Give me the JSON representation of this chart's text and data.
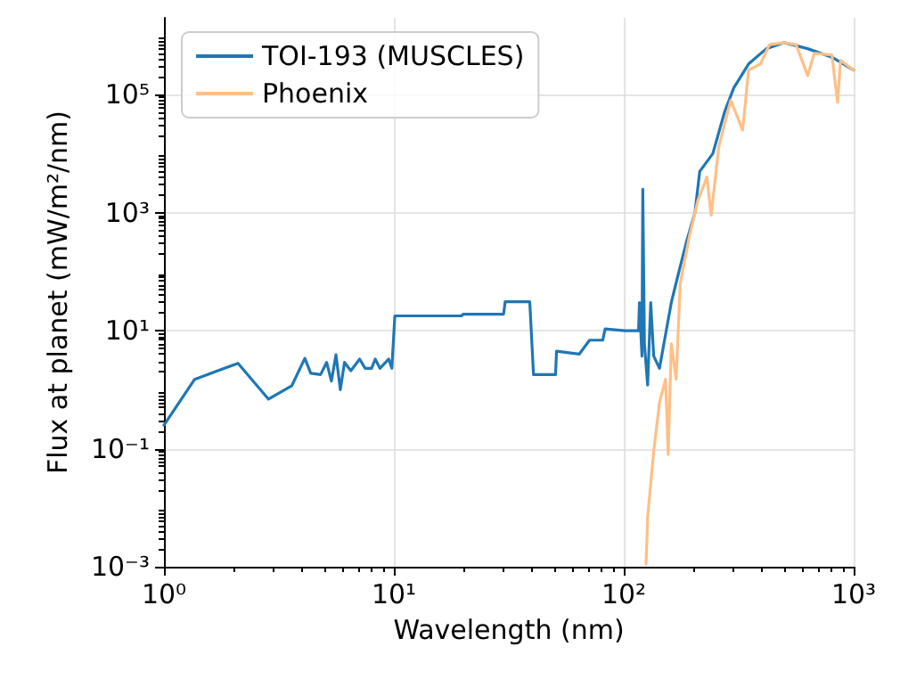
{
  "chart_data": {
    "type": "line",
    "xlabel": "Wavelength (nm)",
    "ylabel": "Flux at planet (mW/m²/nm)",
    "log": "xy",
    "grid": true,
    "legend": "top left",
    "line_style": "solid",
    "marker": "none",
    "xlim": [
      1,
      1000
    ],
    "xticks": [
      {
        "value": 1,
        "label": "10⁰"
      },
      {
        "value": 10,
        "label": "10¹"
      },
      {
        "value": 100,
        "label": "10²"
      },
      {
        "value": 1000,
        "label": "10³"
      }
    ],
    "ylim": [
      0.001,
      2000000
    ],
    "yticks": [
      {
        "value": 0.001,
        "label": "10⁻³"
      },
      {
        "value": 0.1,
        "label": "10⁻¹"
      },
      {
        "value": 10,
        "label": "10¹"
      },
      {
        "value": 1000,
        "label": "10³"
      },
      {
        "value": 100000,
        "label": "10⁵"
      }
    ],
    "series": [
      {
        "name": "TOI-193 (MUSCLES)",
        "color": "#1f77b4",
        "x": [
          1.0,
          1.36,
          2.1,
          2.85,
          3.6,
          4.1,
          4.35,
          4.8,
          5.1,
          5.35,
          5.6,
          5.85,
          6.1,
          6.5,
          7.1,
          7.5,
          8.0,
          8.3,
          8.7,
          9.5,
          9.8,
          10.1,
          19.7,
          20,
          30,
          30.5,
          39,
          40.5,
          50.5,
          51,
          64,
          71,
          81,
          83,
          101,
          116,
          117,
          120,
          121,
          123,
          127,
          131,
          135,
          143,
          161,
          171,
          187,
          204,
          214,
          244,
          275,
          301,
          349,
          417,
          499,
          631,
          804,
          1000
        ],
        "values": [
          0.25,
          1.5,
          2.8,
          0.69,
          1.17,
          3.4,
          1.9,
          1.8,
          2.9,
          1.4,
          3.9,
          1.0,
          2.9,
          2.1,
          3.3,
          2.3,
          2.3,
          3.3,
          2.3,
          3.3,
          2.3,
          17.8,
          17.8,
          19,
          19,
          31,
          31,
          1.8,
          1.8,
          4.5,
          4.0,
          6.9,
          6.9,
          10.7,
          10,
          10,
          30,
          3.7,
          2500,
          6,
          1.2,
          30,
          3.7,
          2.3,
          30,
          78,
          310,
          1000,
          5000,
          10000,
          52000,
          130000,
          330000,
          600000,
          760000,
          600000,
          430000,
          260000
        ]
      },
      {
        "name": "Phoenix",
        "color": "#ffbf86",
        "x": [
          125,
          127,
          135,
          143,
          152,
          156,
          161,
          169,
          176,
          193,
          210,
          230,
          240,
          259,
          292,
          329,
          349,
          393,
          430,
          499,
          562,
          631,
          673,
          804,
          851,
          877,
          1000
        ],
        "values": [
          0.0011,
          0.007,
          0.09,
          0.6,
          1.5,
          0.08,
          6,
          1.5,
          62,
          400,
          1600,
          4000,
          900,
          13000,
          80000,
          25000,
          260000,
          330000,
          700000,
          760000,
          700000,
          210000,
          500000,
          470000,
          74000,
          380000,
          260000
        ]
      }
    ]
  }
}
